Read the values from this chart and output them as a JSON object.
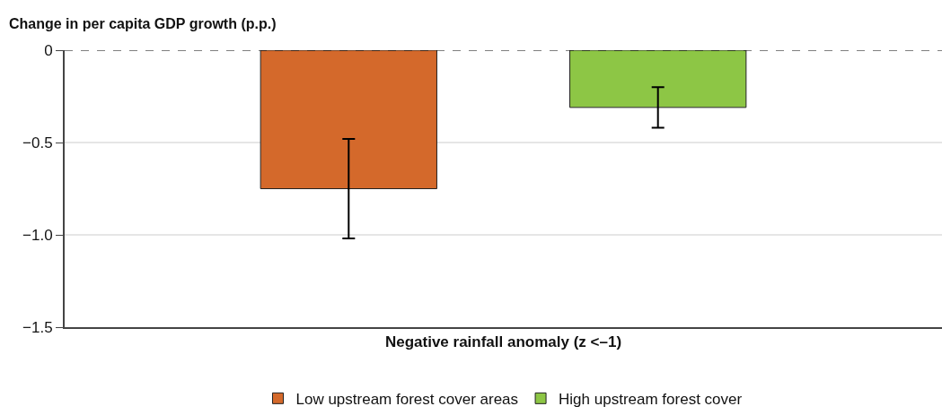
{
  "chart_data": {
    "type": "bar",
    "ylabel": "Change in per capita GDP growth (p.p.)",
    "categories": [
      "Negative rainfall anomaly (z <–1)"
    ],
    "series": [
      {
        "name": "Low upstream forest cover areas",
        "color": "#d4692b",
        "values": [
          -0.75
        ],
        "errors": [
          0.27
        ]
      },
      {
        "name": "High upstream forest cover",
        "color": "#8dc645",
        "values": [
          -0.31
        ],
        "errors": [
          0.11
        ]
      }
    ],
    "ylim": [
      -1.5,
      0
    ],
    "yticks": [
      {
        "value": -1.5,
        "label": "−1.5"
      },
      {
        "value": -1,
        "label": "−1.0"
      },
      {
        "value": -0.5,
        "label": "−0.5"
      },
      0
    ],
    "grid": "y",
    "legend": "bottom",
    "ref_lines": [
      {
        "axis": "y",
        "value": 0,
        "color": "#000000",
        "line_style": "dashed"
      }
    ]
  }
}
